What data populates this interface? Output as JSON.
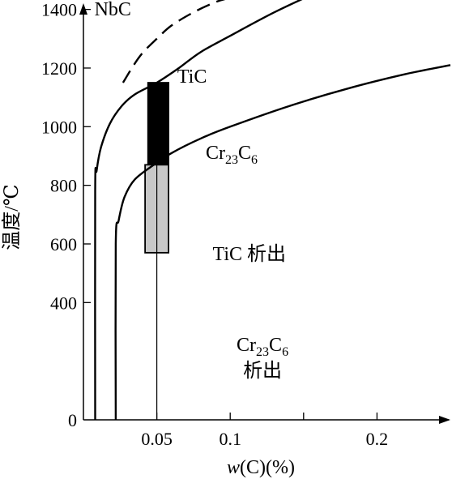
{
  "chart_data": {
    "type": "line",
    "ylabel": "温度/℃",
    "xlabel_italic": "w",
    "xlabel_rest": "(C)(%)",
    "x_ticks": [
      {
        "value": 0.05,
        "label": "0.05"
      },
      {
        "value": 0.1,
        "label": "0.1"
      },
      {
        "value": 0.15,
        "label": ""
      },
      {
        "value": 0.2,
        "label": "0.2"
      }
    ],
    "y_ticks": [
      {
        "value": 0,
        "label": "0"
      },
      {
        "value": 400,
        "label": "400"
      },
      {
        "value": 600,
        "label": "600"
      },
      {
        "value": 800,
        "label": "800"
      },
      {
        "value": 1000,
        "label": "1000"
      },
      {
        "value": 1200,
        "label": "1200"
      },
      {
        "value": 1400,
        "label": "1400"
      }
    ],
    "xlim": [
      0,
      0.25
    ],
    "ylim": [
      0,
      1520
    ],
    "grid": false,
    "reference_line": {
      "x": 0.05
    },
    "series": [
      {
        "name": "NbC",
        "style": "dashed",
        "points": [
          [
            0.027,
            1150
          ],
          [
            0.033,
            1200
          ],
          [
            0.04,
            1250
          ],
          [
            0.05,
            1300
          ],
          [
            0.06,
            1345
          ],
          [
            0.075,
            1390
          ],
          [
            0.09,
            1425
          ],
          [
            0.1,
            1440
          ]
        ]
      },
      {
        "name": "TiC",
        "style": "solid",
        "points": [
          [
            0.008,
            0
          ],
          [
            0.008,
            780
          ],
          [
            0.009,
            850
          ],
          [
            0.012,
            930
          ],
          [
            0.018,
            1010
          ],
          [
            0.026,
            1070
          ],
          [
            0.035,
            1110
          ],
          [
            0.05,
            1150
          ],
          [
            0.065,
            1200
          ],
          [
            0.08,
            1255
          ],
          [
            0.1,
            1310
          ],
          [
            0.13,
            1390
          ],
          [
            0.16,
            1460
          ],
          [
            0.17,
            1480
          ]
        ]
      },
      {
        "name": "Cr23C6",
        "style": "solid",
        "points": [
          [
            0.022,
            0
          ],
          [
            0.022,
            600
          ],
          [
            0.024,
            680
          ],
          [
            0.028,
            760
          ],
          [
            0.035,
            820
          ],
          [
            0.048,
            870
          ],
          [
            0.06,
            910
          ],
          [
            0.08,
            960
          ],
          [
            0.1,
            1000
          ],
          [
            0.14,
            1070
          ],
          [
            0.18,
            1130
          ],
          [
            0.22,
            1180
          ],
          [
            0.25,
            1210
          ]
        ]
      }
    ],
    "bars": [
      {
        "x0": 0.044,
        "x1": 0.058,
        "y0": 870,
        "y1": 1150,
        "fill": "#000000"
      },
      {
        "x0": 0.042,
        "x1": 0.058,
        "y0": 570,
        "y1": 870,
        "fill": "#c8c8c8"
      }
    ],
    "annotations": [
      {
        "id": "nbc",
        "lines": [
          "NbC"
        ],
        "x": 0.02,
        "y": 1380
      },
      {
        "id": "tic",
        "lines": [
          "TiC"
        ],
        "x": 0.074,
        "y": 1150
      },
      {
        "id": "cr23c6",
        "lines": [
          [
            [
              "Cr",
              ""
            ],
            [
              "23",
              "sub"
            ],
            [
              "C",
              ""
            ],
            [
              "6",
              "sub"
            ]
          ]
        ],
        "x": 0.101,
        "y": 890
      },
      {
        "id": "tic-precip",
        "lines": [
          "TiC 析出"
        ],
        "x": 0.113,
        "y": 545
      },
      {
        "id": "cr23c6-precip",
        "lines": [
          [
            [
              "Cr",
              ""
            ],
            [
              "23",
              "sub"
            ],
            [
              "C",
              ""
            ],
            [
              "6",
              "sub"
            ]
          ],
          "析出"
        ],
        "x": 0.122,
        "y": 235
      }
    ]
  }
}
